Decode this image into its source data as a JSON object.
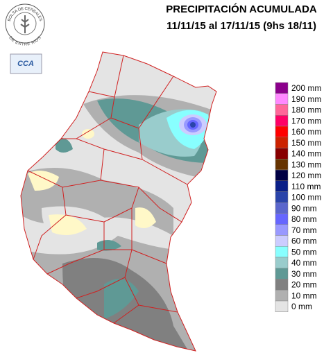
{
  "header": {
    "title": "PRECIPITACIÓN ACUMULADA",
    "subtitle": "11/11/15 al 17/11/15 (9hs 18/11)"
  },
  "logo": {
    "top_text": "BOLSA DE CEREALES",
    "bottom_text": "DE ENTRE RIOS",
    "badge": "CCA"
  },
  "legend": [
    {
      "label": "200 mm",
      "color": "#8b008b"
    },
    {
      "label": "190 mm",
      "color": "#ff88ff"
    },
    {
      "label": "180 mm",
      "color": "#ff6699"
    },
    {
      "label": "170 mm",
      "color": "#ff0066"
    },
    {
      "label": "160 mm",
      "color": "#ff0000"
    },
    {
      "label": "150 mm",
      "color": "#cc2200"
    },
    {
      "label": "140 mm",
      "color": "#880000"
    },
    {
      "label": "130 mm",
      "color": "#663300"
    },
    {
      "label": "120 mm",
      "color": "#000044"
    },
    {
      "label": "110 mm",
      "color": "#0a1f88"
    },
    {
      "label": "100 mm",
      "color": "#2a44aa"
    },
    {
      "label": "90 mm",
      "color": "#5a66cc"
    },
    {
      "label": "80 mm",
      "color": "#6666ff"
    },
    {
      "label": "70 mm",
      "color": "#9999ff"
    },
    {
      "label": "60 mm",
      "color": "#ccccff"
    },
    {
      "label": "50 mm",
      "color": "#88ffff"
    },
    {
      "label": "40 mm",
      "color": "#99cccc"
    },
    {
      "label": "30 mm",
      "color": "#5f9995"
    },
    {
      "label": "20 mm",
      "color": "#808080"
    },
    {
      "label": "10 mm",
      "color": "#b0b0b0"
    },
    {
      "label": "0 mm",
      "color": "#e4e4e4"
    }
  ]
}
